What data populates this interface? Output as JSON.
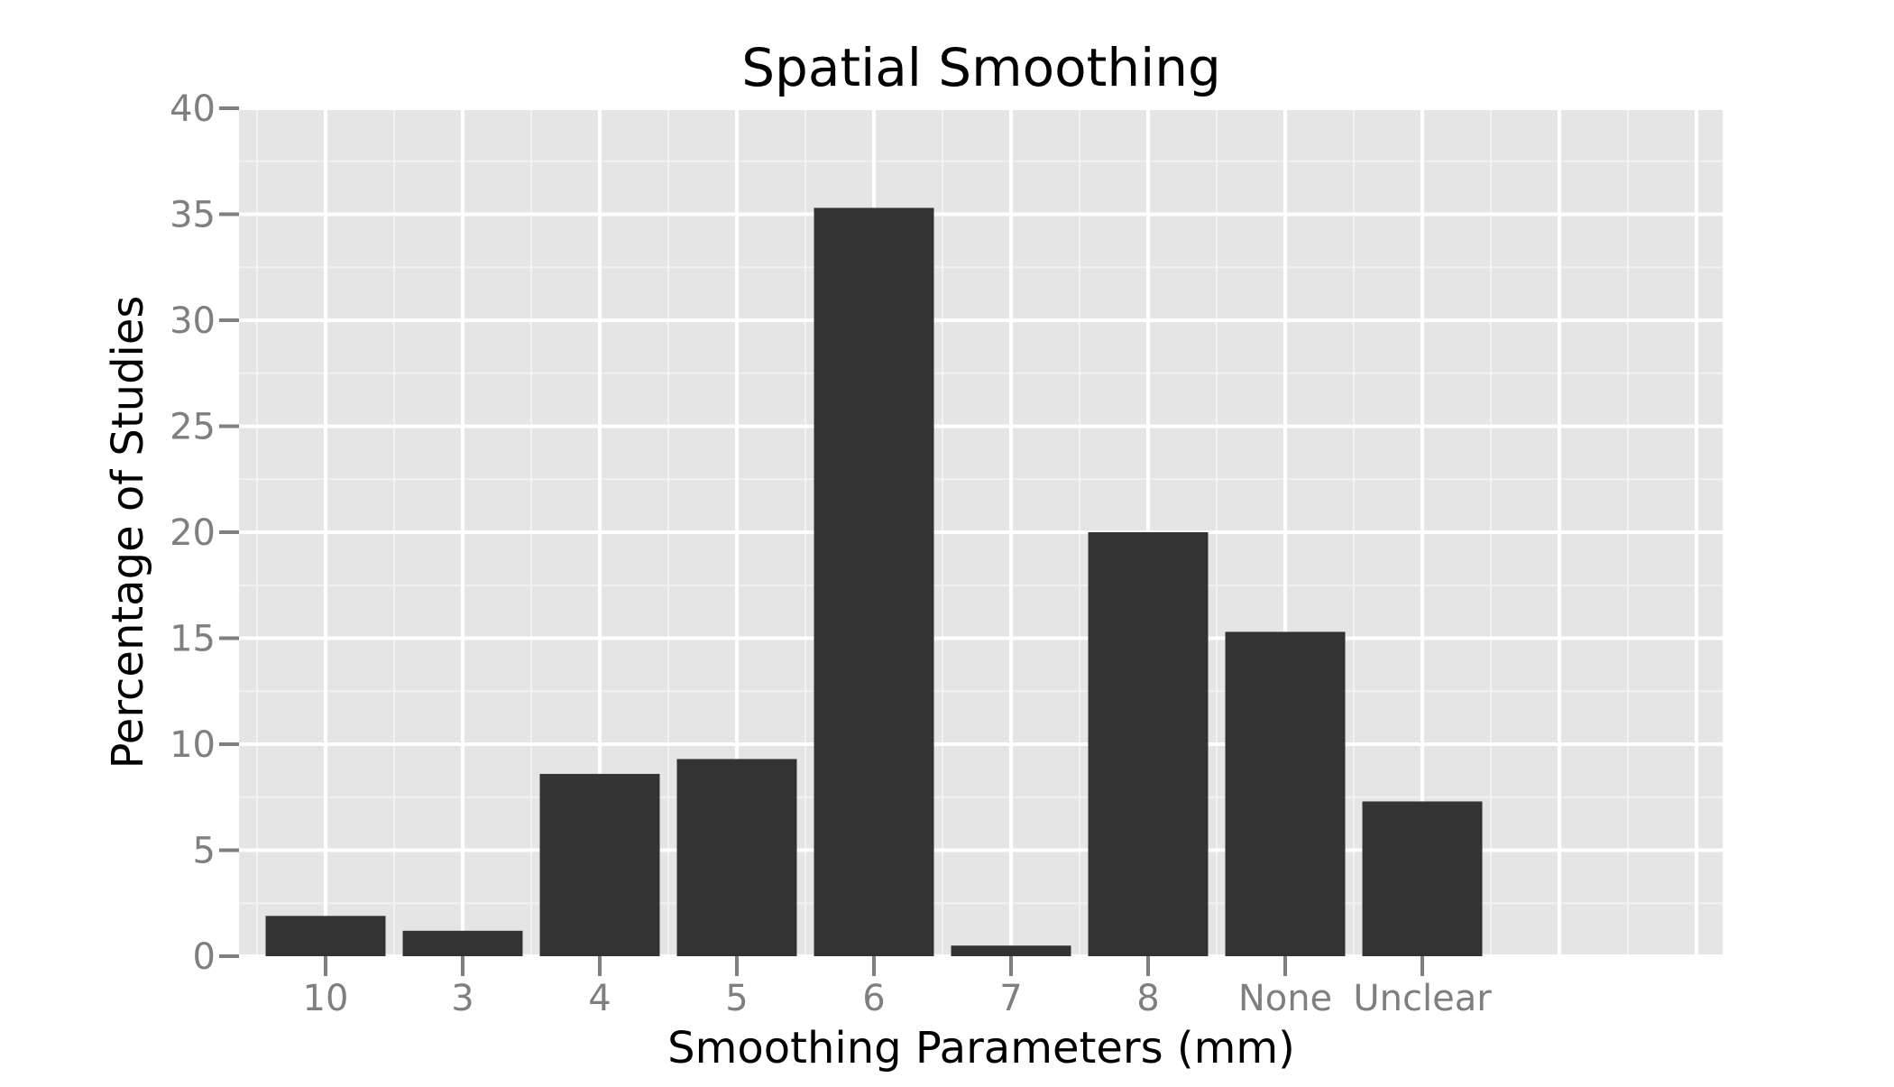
{
  "chart_data": {
    "type": "bar",
    "title": "Spatial Smoothing",
    "xlabel": "Smoothing Parameters (mm)",
    "ylabel": "Percentage of Studies",
    "categories": [
      "10",
      "3",
      "4",
      "5",
      "6",
      "7",
      "8",
      "None",
      "Unclear"
    ],
    "values": [
      1.9,
      1.2,
      8.6,
      9.3,
      35.3,
      0.5,
      20.0,
      15.3,
      7.3
    ],
    "ylim": [
      0,
      40
    ],
    "yticks": [
      "0",
      "5",
      "10",
      "15",
      "20",
      "25",
      "30",
      "35",
      "40"
    ],
    "grid": true,
    "colors": {
      "panel_background": "#e5e5e5",
      "grid_major": "#ffffff",
      "grid_minor": "#f2f2f2",
      "bar_fill": "#333333",
      "tick_color": "#7f7f7f"
    }
  }
}
